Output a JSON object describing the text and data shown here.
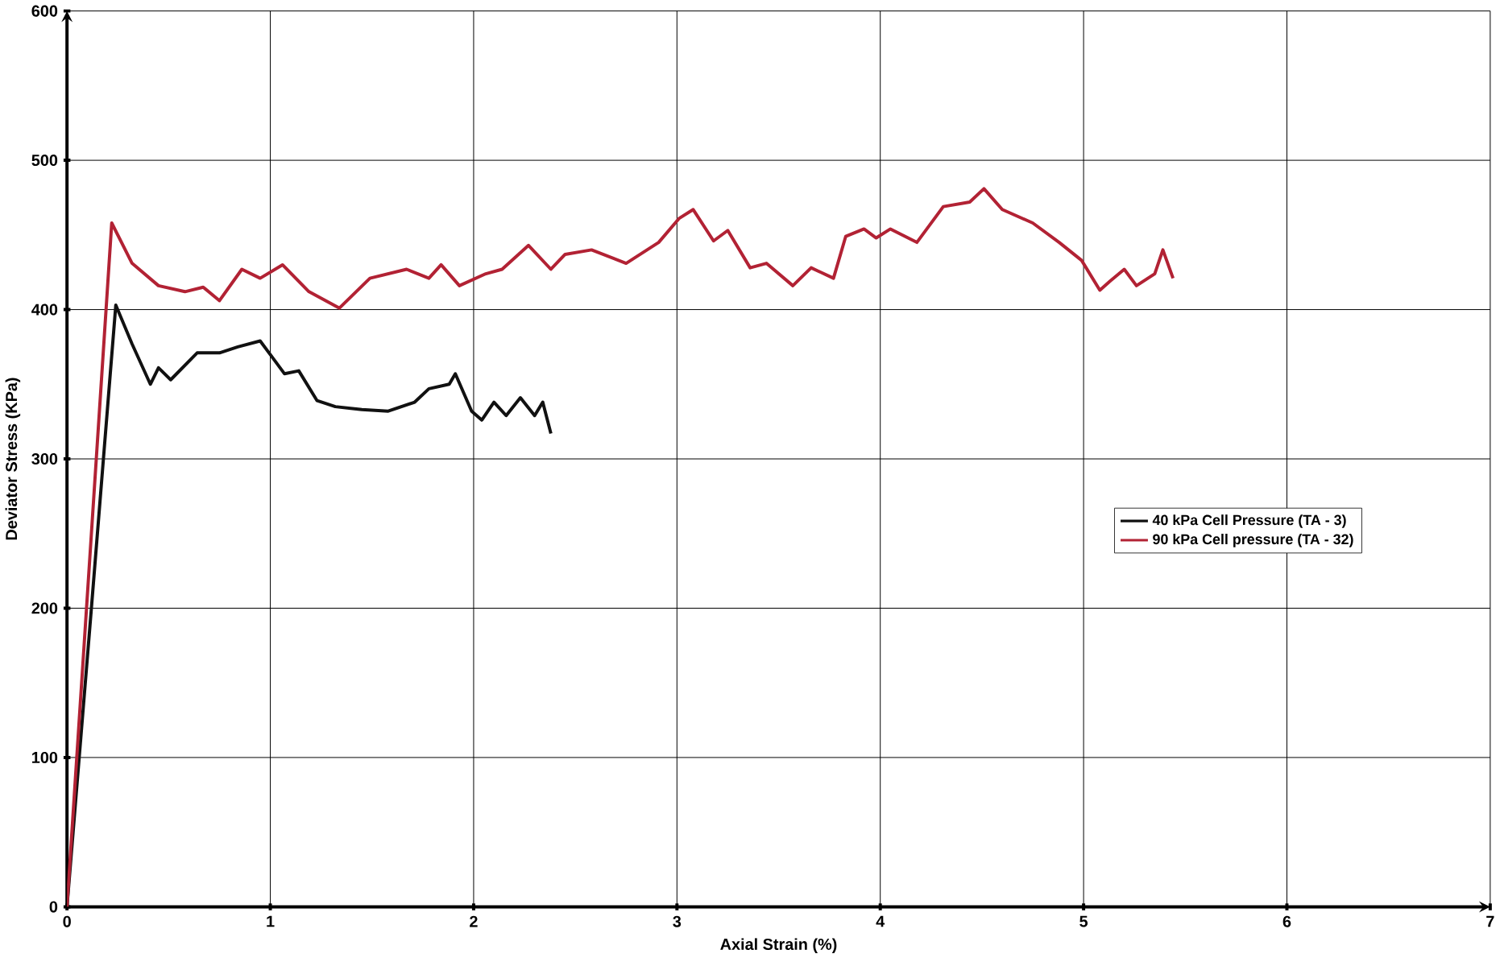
{
  "chart_data": {
    "type": "line",
    "xlabel": "Axial Strain (%)",
    "ylabel": "Deviator Stress (KPa)",
    "xlim": [
      0,
      7
    ],
    "ylim": [
      0,
      600
    ],
    "xticks": [
      0,
      1,
      2,
      3,
      4,
      5,
      6,
      7
    ],
    "yticks": [
      0,
      100,
      200,
      300,
      400,
      500,
      600
    ],
    "grid": true,
    "legend": "right",
    "marker": "none",
    "line_style": "solid",
    "series": [
      {
        "name": "40 kPa Cell Pressure (TA - 3)",
        "color": "#111111",
        "x": [
          0,
          0.12,
          0.24,
          0.32,
          0.41,
          0.45,
          0.51,
          0.64,
          0.75,
          0.84,
          0.95,
          1.01,
          1.07,
          1.14,
          1.23,
          1.32,
          1.45,
          1.58,
          1.71,
          1.78,
          1.88,
          1.91,
          1.99,
          2.04,
          2.1,
          2.16,
          2.23,
          2.3,
          2.34,
          2.38
        ],
        "values": [
          0,
          200,
          403,
          377,
          350,
          361,
          353,
          371,
          371,
          375,
          379,
          368,
          357,
          359,
          339,
          335,
          333,
          332,
          338,
          347,
          350,
          357,
          332,
          326,
          338,
          329,
          341,
          329,
          338,
          317
        ]
      },
      {
        "name": "90 kPa Cell pressure (TA - 32)",
        "color": "#b22234",
        "x": [
          0,
          0.12,
          0.22,
          0.32,
          0.45,
          0.58,
          0.67,
          0.75,
          0.86,
          0.95,
          1.06,
          1.19,
          1.34,
          1.49,
          1.67,
          1.78,
          1.84,
          1.93,
          2.06,
          2.14,
          2.27,
          2.38,
          2.45,
          2.58,
          2.75,
          2.91,
          3.01,
          3.08,
          3.18,
          3.25,
          3.36,
          3.44,
          3.57,
          3.66,
          3.77,
          3.83,
          3.92,
          3.98,
          4.05,
          4.18,
          4.31,
          4.44,
          4.51,
          4.6,
          4.75,
          4.88,
          4.99,
          5.08,
          5.13,
          5.2,
          5.26,
          5.35,
          5.39,
          5.44
        ],
        "values": [
          0,
          250,
          458,
          431,
          416,
          412,
          415,
          406,
          427,
          421,
          430,
          412,
          401,
          421,
          427,
          421,
          430,
          416,
          424,
          427,
          443,
          427,
          437,
          440,
          431,
          445,
          461,
          467,
          446,
          453,
          428,
          431,
          416,
          428,
          421,
          449,
          454,
          448,
          454,
          445,
          469,
          472,
          481,
          467,
          458,
          445,
          433,
          413,
          419,
          427,
          416,
          424,
          440,
          421
        ]
      }
    ]
  }
}
